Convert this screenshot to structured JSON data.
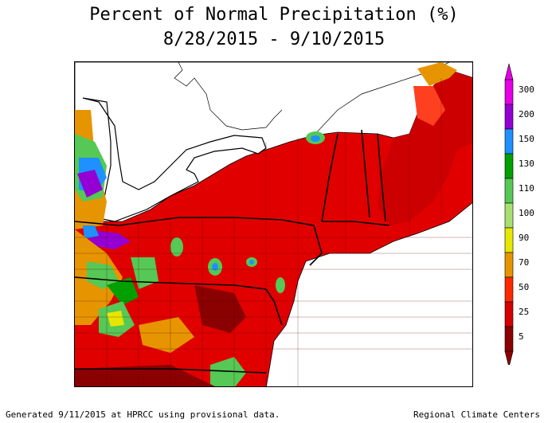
{
  "title": "Percent of Normal Precipitation (%)",
  "date_range": "8/28/2015 - 9/10/2015",
  "legend": {
    "levels": [
      {
        "label": "300",
        "color": "#e600e6"
      },
      {
        "label": "200",
        "color": "#9400d3"
      },
      {
        "label": "150",
        "color": "#1e90ff"
      },
      {
        "label": "130",
        "color": "#00a000"
      },
      {
        "label": "110",
        "color": "#55c855"
      },
      {
        "label": "100",
        "color": "#a8e070"
      },
      {
        "label": "90",
        "color": "#e6e600"
      },
      {
        "label": "70",
        "color": "#e69500"
      },
      {
        "label": "50",
        "color": "#ff2a00"
      },
      {
        "label": "25",
        "color": "#d40000"
      },
      {
        "label": "5",
        "color": "#8b0000"
      }
    ]
  },
  "footer": {
    "left": "Generated 9/11/2015 at HPRCC using provisional data.",
    "right": "Regional Climate Centers"
  }
}
